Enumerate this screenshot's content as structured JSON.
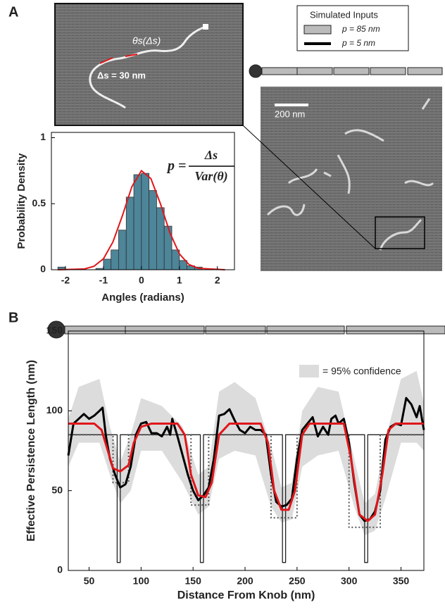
{
  "panel_labels": [
    "A",
    "B"
  ],
  "image_labels": {
    "angle": "θs(Δs)",
    "step": "Δs = 30 nm",
    "scale": "200 nm"
  },
  "inputs_legend": {
    "title": "Simulated Inputs",
    "entries": [
      "p = 85 nm",
      "p = 5 nm"
    ]
  },
  "formula": {
    "lhs": "p =",
    "numerator": "Δs",
    "denominator": "Var(θ)"
  },
  "chart_data": [
    {
      "type": "histogram",
      "xlabel": "Angles (radians)",
      "ylabel": "Probability Density",
      "bins": [
        -2.2,
        -2.0,
        -1.8,
        -1.6,
        -1.4,
        -1.2,
        -1.0,
        -0.8,
        -0.6,
        -0.4,
        -0.2,
        0,
        0.2,
        0.4,
        0.6,
        0.8,
        1.0,
        1.2,
        1.4,
        1.6
      ],
      "counts": [
        0.02,
        0,
        0,
        0,
        0,
        0.01,
        0.08,
        0.15,
        0.3,
        0.55,
        0.72,
        0.73,
        0.6,
        0.47,
        0.33,
        0.15,
        0.07,
        0.03,
        0.02
      ],
      "color": "#4d8599",
      "xlim": [
        -2.37,
        2.45
      ],
      "ylim": [
        0,
        1.04
      ],
      "xticks": [
        -2,
        -1,
        0,
        1,
        2
      ],
      "yticks": [
        0,
        0.5,
        1
      ],
      "fit": {
        "color": "#e0161a",
        "x": [
          -2.2,
          -1.5,
          -1.25,
          -1,
          -0.75,
          -0.5,
          -0.25,
          0,
          0.25,
          0.5,
          0.75,
          1,
          1.25,
          1.5,
          2.2
        ],
        "values": [
          0,
          0.006,
          0.026,
          0.083,
          0.21,
          0.41,
          0.63,
          0.75,
          0.69,
          0.5,
          0.28,
          0.12,
          0.04,
          0.011,
          0
        ]
      }
    },
    {
      "type": "line",
      "xlabel": "Distance From Knob (nm)",
      "ylabel": "Effective Persistence Length (nm)",
      "xlim": [
        30,
        372
      ],
      "ylim": [
        0,
        150
      ],
      "xticks": [
        50,
        100,
        150,
        200,
        250,
        300,
        350
      ],
      "yticks": [
        0,
        50,
        100,
        150
      ],
      "band": {
        "name": "= 95% confidence",
        "color": "#dcdcdc",
        "x": [
          30,
          40,
          60,
          70,
          80,
          90,
          100,
          120,
          140,
          155,
          165,
          175,
          190,
          210,
          225,
          235,
          245,
          255,
          270,
          290,
          305,
          315,
          325,
          335,
          350,
          365,
          372
        ],
        "lower": [
          65,
          80,
          80,
          60,
          42,
          50,
          75,
          75,
          55,
          35,
          40,
          70,
          75,
          72,
          40,
          30,
          32,
          65,
          72,
          75,
          40,
          22,
          25,
          45,
          80,
          80,
          75
        ],
        "upper": [
          95,
          115,
          120,
          90,
          68,
          85,
          108,
          103,
          90,
          60,
          65,
          112,
          118,
          108,
          78,
          52,
          55,
          100,
          115,
          112,
          70,
          42,
          48,
          82,
          120,
          125,
          105
        ]
      },
      "series": [
        {
          "color": "#222222",
          "style": "thin",
          "x": [
            30,
            77,
            77,
            80,
            80,
            157,
            157,
            160,
            160,
            236,
            236,
            239,
            239,
            315,
            315,
            318,
            318,
            372
          ],
          "values": [
            85,
            85,
            5,
            5,
            85,
            85,
            5,
            5,
            85,
            85,
            5,
            5,
            85,
            85,
            5,
            5,
            85,
            85
          ]
        },
        {
          "color": "#555555",
          "style": "dotted",
          "x": [
            30,
            73,
            73,
            88,
            88,
            148,
            148,
            165,
            165,
            225,
            225,
            250,
            250,
            300,
            300,
            330,
            330,
            372
          ],
          "values": [
            85,
            85,
            55,
            55,
            85,
            85,
            41,
            41,
            85,
            85,
            33,
            33,
            85,
            85,
            27,
            27,
            85,
            85
          ]
        },
        {
          "color": "#000000",
          "style": "thick",
          "x": [
            30,
            35,
            40,
            45,
            50,
            55,
            60,
            63,
            66,
            70,
            75,
            80,
            85,
            90,
            95,
            100,
            105,
            110,
            115,
            120,
            125,
            128,
            130,
            135,
            140,
            145,
            150,
            155,
            160,
            165,
            170,
            175,
            180,
            185,
            190,
            195,
            200,
            205,
            210,
            215,
            220,
            225,
            230,
            235,
            240,
            245,
            250,
            255,
            260,
            265,
            270,
            275,
            280,
            283,
            287,
            290,
            295,
            300,
            305,
            310,
            315,
            320,
            325,
            330,
            335,
            340,
            345,
            350,
            355,
            360,
            365,
            368,
            372
          ],
          "values": [
            72,
            92,
            95,
            98,
            95,
            97,
            100,
            102,
            85,
            70,
            60,
            52,
            54,
            65,
            85,
            92,
            93,
            86,
            86,
            84,
            90,
            85,
            95,
            84,
            72,
            60,
            50,
            44,
            47,
            52,
            70,
            97,
            98,
            101,
            94,
            88,
            86,
            90,
            88,
            88,
            85,
            60,
            43,
            40,
            41,
            45,
            70,
            88,
            92,
            96,
            84,
            90,
            85,
            95,
            97,
            92,
            95,
            80,
            55,
            35,
            31,
            32,
            37,
            50,
            82,
            90,
            92,
            91,
            108,
            104,
            96,
            103,
            88
          ]
        },
        {
          "color": "#e0161a",
          "style": "thick",
          "x": [
            30,
            40,
            55,
            62,
            68,
            73,
            80,
            88,
            93,
            100,
            110,
            135,
            142,
            148,
            155,
            162,
            168,
            175,
            185,
            215,
            222,
            228,
            235,
            242,
            248,
            255,
            262,
            295,
            302,
            310,
            318,
            325,
            332,
            338,
            345,
            372
          ],
          "values": [
            92,
            92,
            92,
            88,
            75,
            64,
            62,
            66,
            80,
            90,
            92,
            92,
            85,
            60,
            47,
            46,
            55,
            85,
            92,
            92,
            80,
            50,
            38,
            38,
            50,
            85,
            92,
            92,
            70,
            35,
            31,
            35,
            60,
            88,
            92,
            92
          ]
        }
      ]
    }
  ]
}
